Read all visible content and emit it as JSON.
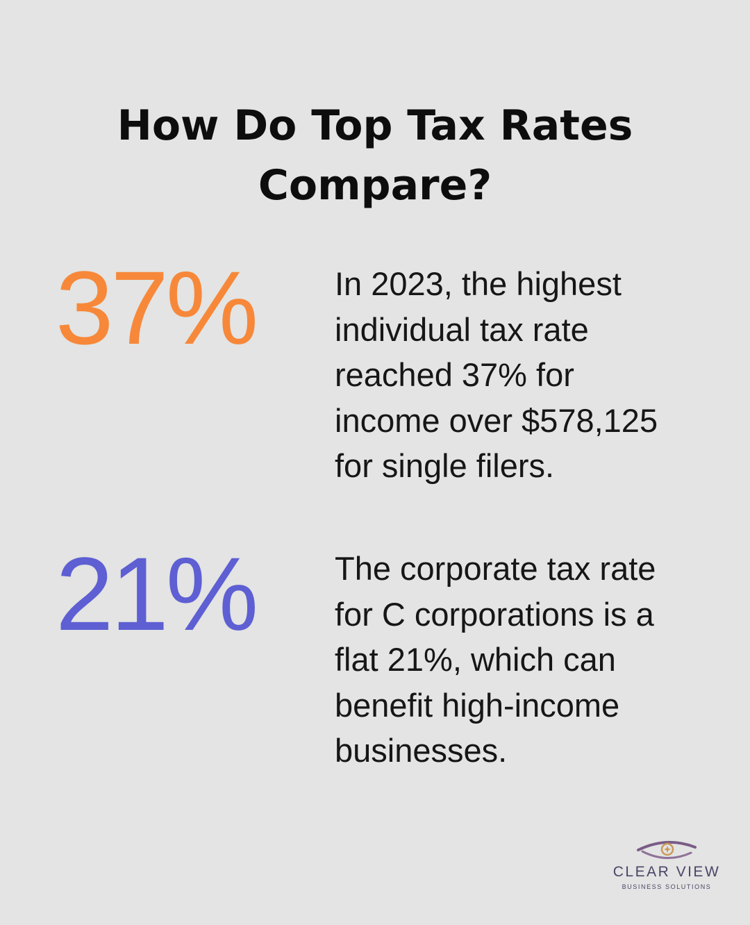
{
  "header": {
    "title_line1": "How Do Top Tax Rates",
    "title_line2": "Compare?"
  },
  "stats": [
    {
      "value": "37%",
      "color": "#f7883a",
      "lines": [
        "In 2023, the highest",
        "individual tax rate",
        "reached 37% for",
        "income over $578,125",
        "for single filers."
      ]
    },
    {
      "value": "21%",
      "color": "#5e5fd3",
      "lines": [
        "The corporate tax rate",
        "for C corporations is a",
        "flat 21%, which can",
        "benefit high-income",
        "businesses."
      ]
    }
  ],
  "logo": {
    "name": "CLEAR VIEW",
    "subtitle": "BUSINESS SOLUTIONS",
    "icon": "eye-icon",
    "colors": {
      "text": "#4a4568",
      "accent": "#c9995a",
      "eye": "#7a5c86"
    }
  }
}
